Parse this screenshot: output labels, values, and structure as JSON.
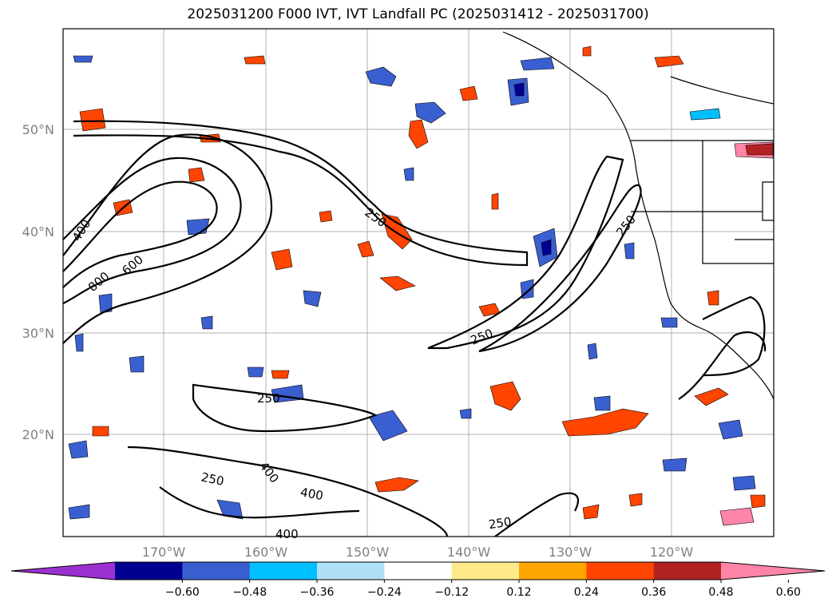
{
  "title": "2025031200 F000 IVT, IVT Landfall PC (2025031412 - 2025031700)",
  "lat_labels": [
    "50°N",
    "40°N",
    "30°N",
    "20°N"
  ],
  "lon_labels": [
    "170°W",
    "160°W",
    "150°W",
    "140°W",
    "130°W",
    "120°W"
  ],
  "colorbar": {
    "colors": [
      "#9b30d0",
      "#000090",
      "#3a5fd0",
      "#00bfff",
      "#b0e0f8",
      "#ffffff",
      "#ffe98a",
      "#ffa500",
      "#ff4500",
      "#b22222",
      "#ff85a8"
    ],
    "tick_labels": [
      "−0.60",
      "−0.48",
      "−0.36",
      "−0.24",
      "−0.12",
      "0.12",
      "0.24",
      "0.36",
      "0.48",
      "0.60"
    ]
  },
  "contour_labels": [
    "400",
    "800",
    "600",
    "250",
    "250",
    "250",
    "250",
    "250",
    "400",
    "400",
    "400",
    "250"
  ]
}
